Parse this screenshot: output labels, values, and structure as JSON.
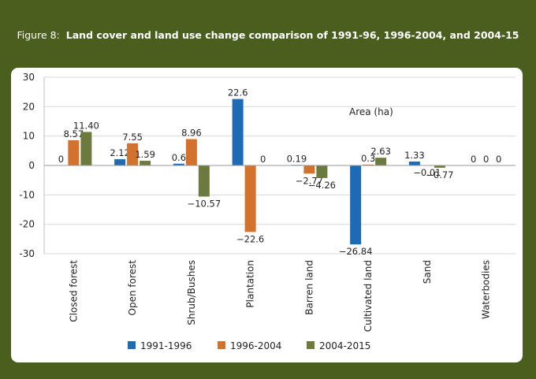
{
  "figure_label": "Figure 8:",
  "figure_title": "Land cover and land use change comparison of 1991-96, 1996-2004, and 2004-15",
  "chart_data": {
    "type": "bar",
    "annotation": "Area (ha)",
    "categories": [
      "Closed forest",
      "Open forest",
      "Shrub/Bushes",
      "Plantation",
      "Barren land",
      "Cultivated land",
      "Sand",
      "Waterbodies"
    ],
    "series": [
      {
        "name": "1991-1996",
        "color": "#1c6bb4",
        "values": [
          0,
          2.12,
          0.6,
          22.6,
          0.19,
          -26.84,
          1.33,
          0
        ],
        "labels": [
          "0",
          "2.12",
          "0.6",
          "22.6",
          "0.19",
          "−26.84",
          "1.33",
          "0"
        ]
      },
      {
        "name": "1996-2004",
        "color": "#d2722c",
        "values": [
          8.57,
          7.55,
          8.96,
          -22.6,
          -2.77,
          0.3,
          -0.01,
          0
        ],
        "labels": [
          "8.57",
          "7.55",
          "8.96",
          "−22.6",
          "−2.77",
          "0.3",
          "−0.01",
          "0"
        ]
      },
      {
        "name": "2004-2015",
        "color": "#6d7a3e",
        "values": [
          11.4,
          1.59,
          -10.57,
          0,
          -4.26,
          2.63,
          -0.77,
          0
        ],
        "labels": [
          "11.40",
          "1.59",
          "−10.57",
          "0",
          "−4.26",
          "2.63",
          "−0.77",
          "0"
        ]
      }
    ],
    "ylim": [
      -30,
      30
    ],
    "yticks": [
      30,
      20,
      10,
      0,
      -10,
      -20,
      -30
    ],
    "legend_position": "bottom-center"
  }
}
